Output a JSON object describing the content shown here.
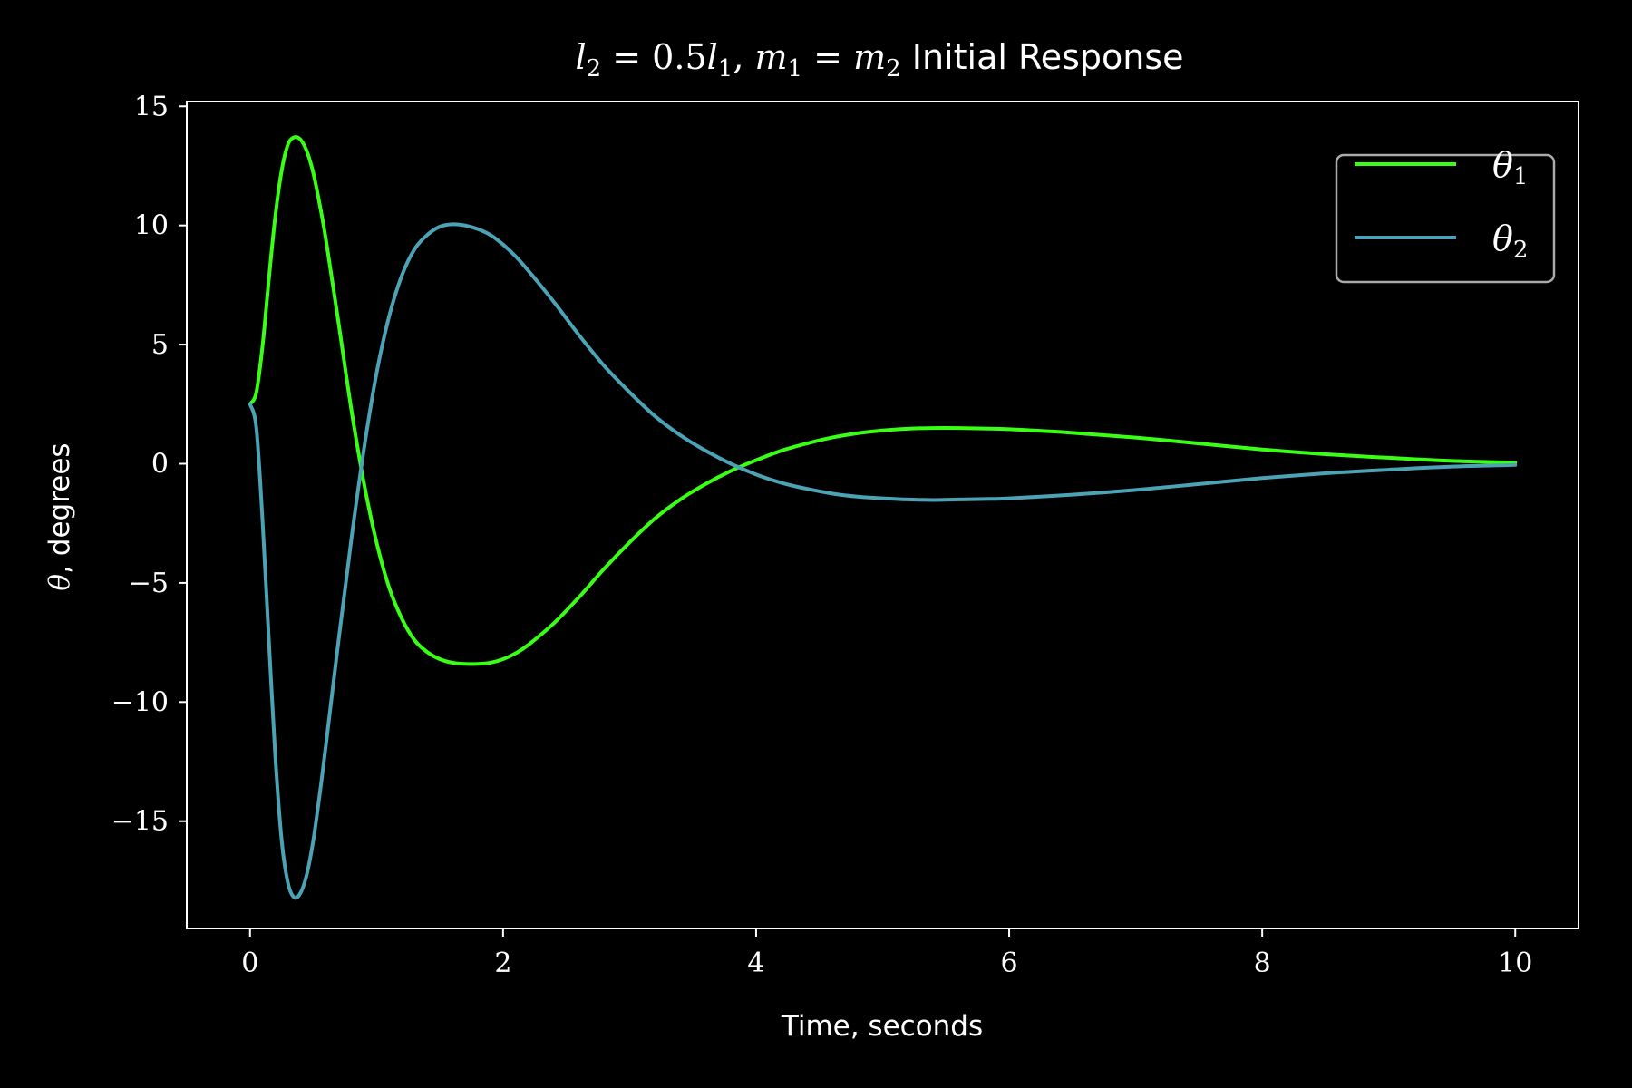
{
  "chart_data": {
    "type": "line",
    "title": {
      "math_l2": "l",
      "math_l2_sub": "2",
      "math_eq1": " = 0.5",
      "math_l1": "l",
      "math_l1_sub": "1",
      "math_comma": ", ",
      "math_m1": "m",
      "math_m1_sub": "1",
      "math_eq2": " = ",
      "math_m2": "m",
      "math_m2_sub": "2",
      "text": " Initial Response"
    },
    "xlabel": "Time, seconds",
    "ylabel_symbol": "θ",
    "ylabel_text": ", degrees",
    "xlim": [
      -0.5,
      10.5
    ],
    "ylim": [
      -19.5,
      15.2
    ],
    "xticks": [
      0,
      2,
      4,
      6,
      8,
      10
    ],
    "xtick_labels": [
      "0",
      "2",
      "4",
      "6",
      "8",
      "10"
    ],
    "yticks": [
      -15,
      -10,
      -5,
      0,
      5,
      10,
      15
    ],
    "ytick_labels": [
      "−15",
      "−10",
      "−5",
      "0",
      "5",
      "10",
      "15"
    ],
    "grid": false,
    "legend_position": "top-right",
    "series": [
      {
        "name": "θ",
        "name_sub": "1",
        "color": "#39ff14",
        "x": [
          0,
          0.05,
          0.1,
          0.15,
          0.2,
          0.25,
          0.3,
          0.35,
          0.4,
          0.45,
          0.5,
          0.55,
          0.6,
          0.7,
          0.8,
          0.9,
          1.0,
          1.1,
          1.2,
          1.3,
          1.4,
          1.5,
          1.6,
          1.7,
          1.8,
          1.9,
          2.0,
          2.1,
          2.2,
          2.4,
          2.6,
          2.8,
          3.0,
          3.2,
          3.4,
          3.6,
          3.8,
          4.0,
          4.2,
          4.4,
          4.6,
          4.8,
          5.0,
          5.2,
          5.4,
          5.6,
          5.8,
          6.0,
          6.5,
          7.0,
          7.5,
          8.0,
          8.5,
          9.0,
          9.5,
          10.0
        ],
        "values": [
          2.5,
          3.0,
          5.0,
          7.8,
          10.4,
          12.3,
          13.4,
          13.7,
          13.6,
          13.1,
          12.2,
          10.9,
          9.4,
          5.9,
          2.3,
          -0.8,
          -3.3,
          -5.2,
          -6.5,
          -7.4,
          -7.9,
          -8.2,
          -8.35,
          -8.4,
          -8.4,
          -8.35,
          -8.2,
          -7.95,
          -7.6,
          -6.7,
          -5.6,
          -4.4,
          -3.3,
          -2.3,
          -1.5,
          -0.85,
          -0.3,
          0.15,
          0.55,
          0.85,
          1.1,
          1.28,
          1.4,
          1.47,
          1.5,
          1.5,
          1.48,
          1.45,
          1.3,
          1.1,
          0.85,
          0.6,
          0.4,
          0.25,
          0.12,
          0.05
        ]
      },
      {
        "name": "θ",
        "name_sub": "2",
        "color": "#4ba3b5",
        "x": [
          0,
          0.05,
          0.1,
          0.15,
          0.2,
          0.25,
          0.3,
          0.35,
          0.4,
          0.45,
          0.5,
          0.55,
          0.6,
          0.7,
          0.8,
          0.9,
          1.0,
          1.1,
          1.2,
          1.3,
          1.4,
          1.5,
          1.6,
          1.7,
          1.8,
          1.9,
          2.0,
          2.1,
          2.2,
          2.4,
          2.6,
          2.8,
          3.0,
          3.2,
          3.4,
          3.6,
          3.8,
          4.0,
          4.2,
          4.4,
          4.6,
          4.8,
          5.0,
          5.2,
          5.4,
          5.6,
          5.8,
          6.0,
          6.5,
          7.0,
          7.5,
          8.0,
          8.5,
          9.0,
          9.5,
          10.0
        ],
        "values": [
          2.5,
          1.5,
          -2.5,
          -7.5,
          -12.3,
          -15.8,
          -17.6,
          -18.2,
          -18.0,
          -17.2,
          -15.8,
          -13.9,
          -11.8,
          -7.4,
          -3.2,
          0.6,
          3.8,
          6.2,
          7.9,
          9.0,
          9.6,
          9.95,
          10.05,
          10.0,
          9.85,
          9.6,
          9.2,
          8.7,
          8.1,
          6.8,
          5.4,
          4.1,
          3.0,
          2.0,
          1.2,
          0.55,
          0.0,
          -0.45,
          -0.8,
          -1.05,
          -1.25,
          -1.38,
          -1.45,
          -1.5,
          -1.52,
          -1.5,
          -1.48,
          -1.45,
          -1.3,
          -1.1,
          -0.85,
          -0.6,
          -0.4,
          -0.25,
          -0.12,
          -0.05
        ]
      }
    ]
  }
}
